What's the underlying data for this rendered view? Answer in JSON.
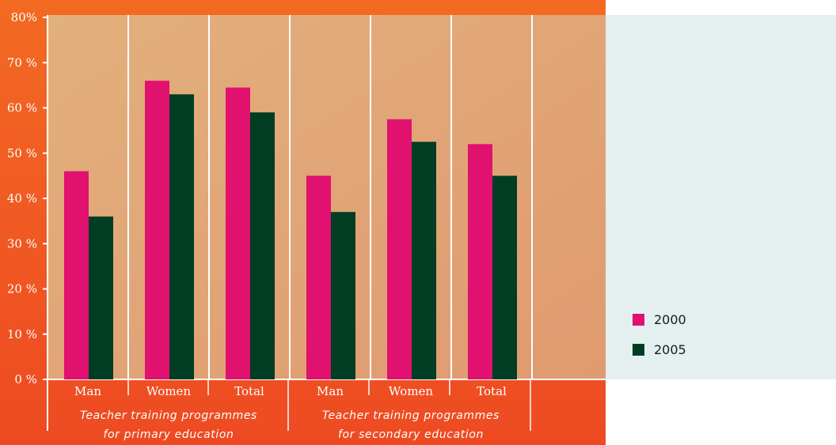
{
  "chart_data": {
    "type": "bar",
    "title": "",
    "xlabel": "",
    "ylabel": "",
    "ylim": [
      0,
      80
    ],
    "yticks": [
      {
        "value": 0,
        "label": "0 %"
      },
      {
        "value": 10,
        "label": "10 %"
      },
      {
        "value": 20,
        "label": "20 %"
      },
      {
        "value": 30,
        "label": "30 %"
      },
      {
        "value": 40,
        "label": "40 %"
      },
      {
        "value": 50,
        "label": "50 %"
      },
      {
        "value": 60,
        "label": "60 %"
      },
      {
        "value": 70,
        "label": "70 %"
      },
      {
        "value": 80,
        "label": "80%"
      }
    ],
    "categories": [
      "Man",
      "Women",
      "Total",
      "Man",
      "Women",
      "Total"
    ],
    "groups": [
      {
        "line1": "Teacher training programmes",
        "line2": "for primary education"
      },
      {
        "line1": "Teacher training programmes",
        "line2": "for secondary education"
      }
    ],
    "series": [
      {
        "name": "2000",
        "color": "#e0116f",
        "values": [
          46,
          66,
          64.5,
          45,
          57.5,
          52
        ]
      },
      {
        "name": "2005",
        "color": "#003d22",
        "values": [
          36,
          63,
          59,
          37,
          52.5,
          45
        ]
      }
    ],
    "grid": false,
    "legend_position": "right"
  }
}
